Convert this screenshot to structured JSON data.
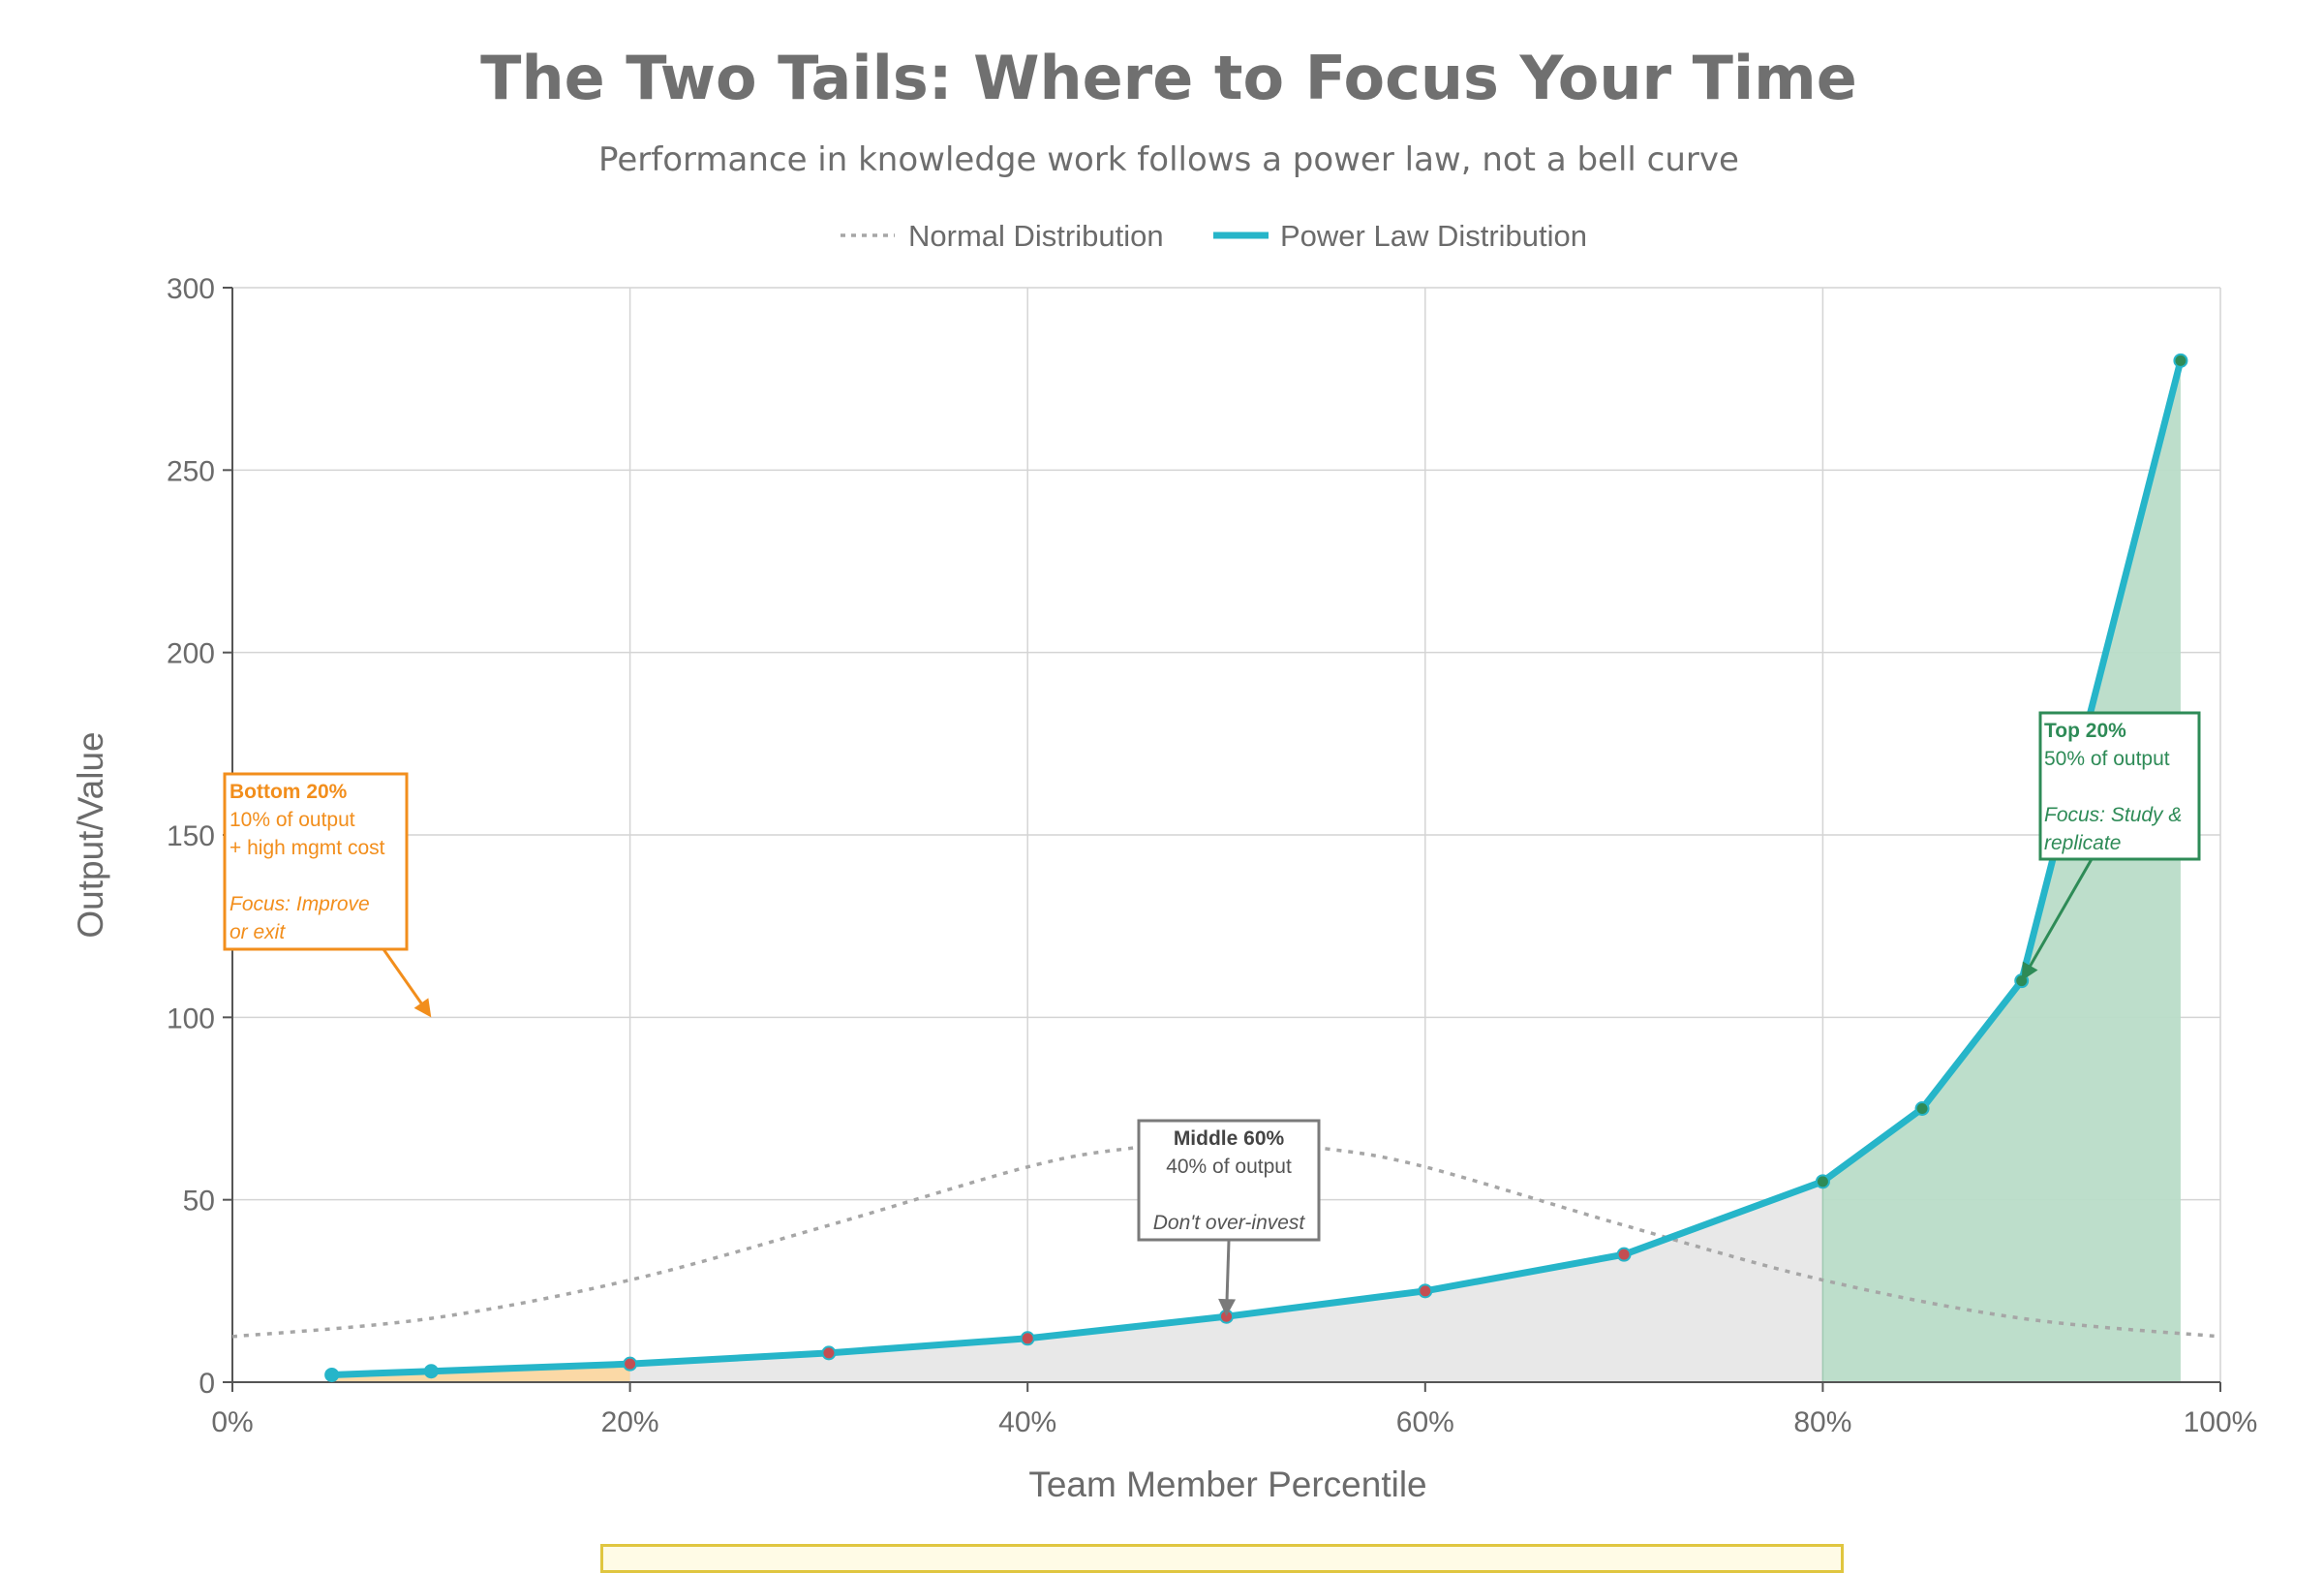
{
  "colors": {
    "power": "#26b5c9",
    "normal": "#a6a6a6",
    "bottom": "#f28e1c",
    "top": "#2e8b57",
    "middle": "#7a7a7a",
    "grid": "#d4d4d4",
    "marker_bottom": "#f28e1c",
    "marker_middle": "#c44e52",
    "marker_top": "#2e8b57"
  },
  "chart_data": {
    "type": "line",
    "title": "The Two Tails: Where to Focus Your Time",
    "subtitle": "Performance in knowledge work follows a power law, not a bell curve",
    "xlabel": "Team Member Percentile",
    "ylabel": "Output/Value",
    "xlim": [
      0,
      100
    ],
    "ylim": [
      0,
      300
    ],
    "x_ticks": [
      0,
      20,
      40,
      60,
      80,
      100
    ],
    "x_tick_labels": [
      "0%",
      "20%",
      "40%",
      "60%",
      "80%",
      "100%"
    ],
    "y_ticks": [
      0,
      50,
      100,
      150,
      200,
      250,
      300
    ],
    "y_tick_labels": [
      "0",
      "50",
      "100",
      "150",
      "200",
      "250",
      "300"
    ],
    "grid": true,
    "legend_position": "top-center",
    "series": [
      {
        "name": "Normal Distribution",
        "style": "dotted",
        "x": [
          0,
          10,
          20,
          30,
          40,
          45,
          50,
          55,
          60,
          70,
          80,
          90,
          100
        ],
        "y": [
          12.5,
          17.5,
          28,
          43,
          59,
          64,
          66,
          64,
          59,
          43,
          28,
          17.5,
          12.5
        ]
      },
      {
        "name": "Power Law Distribution",
        "style": "solid",
        "x": [
          5,
          10,
          20,
          30,
          40,
          50,
          60,
          70,
          80,
          85,
          90,
          98
        ],
        "y": [
          2,
          3,
          5,
          8,
          12,
          18,
          25,
          35,
          55,
          75,
          110,
          280
        ]
      }
    ],
    "annotations": [
      {
        "id": "bottom",
        "lines": [
          "Bottom 20%",
          "10% of output",
          "+ high mgmt cost",
          "",
          "Focus: Improve",
          "or exit"
        ],
        "arrow_to": [
          10,
          100
        ]
      },
      {
        "id": "middle",
        "lines": [
          "Middle 60%",
          "40% of output",
          "",
          "Don't over-invest"
        ],
        "arrow_to": [
          50,
          18
        ]
      },
      {
        "id": "top",
        "lines": [
          "Top 20%",
          "50% of output",
          "",
          "Focus: Study &",
          "replicate"
        ],
        "arrow_to": [
          90,
          110
        ]
      }
    ]
  }
}
